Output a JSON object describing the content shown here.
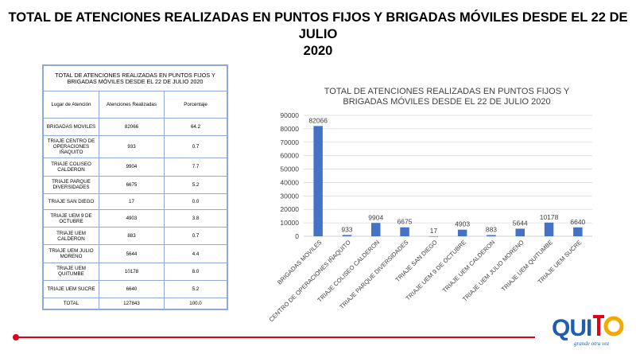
{
  "page": {
    "title_line1": "TOTAL DE ATENCIONES REALIZADAS EN PUNTOS FIJOS Y BRIGADAS MÓVILES DESDE EL 22 DE JULIO",
    "title_line2": "2020"
  },
  "table": {
    "title": "TOTAL DE ATENCIONES  REALIZADAS  EN  PUNTOS FIJOS Y BRIGADAS  MÓVILES  DESDE EL 22 DE JULIO 2020",
    "headers": [
      "Lugar de Atención",
      "Atenciones Realizadas",
      "Porcentaje"
    ],
    "rows": [
      [
        "BRIGADAS MOVILES",
        "82066",
        "64.2"
      ],
      [
        "TRIAJE  CENTRO DE  OPERACIONES IÑAQUITO",
        "933",
        "0.7"
      ],
      [
        "TRIAJE  COLISEO CALDERON",
        "9904",
        "7.7"
      ],
      [
        "TRIAJE  PARQUE DIVERSIDADES",
        "6675",
        "5.2"
      ],
      [
        "TRIAJE  SAN DIEGO",
        "17",
        "0.0"
      ],
      [
        "TRIAJE  UEM  9 DE OCTUBRE",
        "4903",
        "3.8"
      ],
      [
        "TRIAJE  UEM CALDERON",
        "883",
        "0.7"
      ],
      [
        "TRIAJE  UEM  JULIO MORENO",
        "5644",
        "4.4"
      ],
      [
        "TRIAJE  UEM QUITUMBE",
        "10178",
        "8.0"
      ],
      [
        "TRIAJE  UEM SUCRE",
        "6640",
        "5.2"
      ]
    ],
    "total": [
      "TOTAL",
      "127843",
      "100.0"
    ]
  },
  "chart_data": {
    "type": "bar",
    "title_line1": "TOTAL DE ATENCIONES REALIZADAS EN PUNTOS FIJOS Y",
    "title_line2": "BRIGADAS MÓVILES DESDE EL 22 DE JULIO 2020",
    "categories": [
      "BRIGADAS MOVILES",
      "CENTRO DE OPERACIONES IÑAQUITO",
      "TRIAJE COLISEO CALDERON",
      "TRIAJE PARQUE DIVERSIDADES",
      "TRIAJE SAN DIEGO",
      "TRIAJE UEM 9 DE OCTUBRE",
      "TRIAJE UEM CALDERON",
      "TRIAJE UEM JULIO MORENO",
      "TRIAJE UEM QUITUMBE",
      "TRIAJE UEM SUCRE"
    ],
    "values": [
      82066,
      933,
      9904,
      6675,
      17,
      4903,
      883,
      5644,
      10178,
      6640
    ],
    "yticks": [
      0,
      10000,
      20000,
      30000,
      40000,
      50000,
      60000,
      70000,
      80000,
      90000
    ],
    "ylim": [
      0,
      90000
    ],
    "grid": true,
    "legend": "none",
    "bar_color": "#4472c4"
  },
  "logo": {
    "text": "QUITO",
    "tagline": "grande otra vez",
    "colors": [
      "#1d5fae",
      "#e2001a",
      "#f2a900"
    ]
  },
  "accent_color": "#e2001a"
}
